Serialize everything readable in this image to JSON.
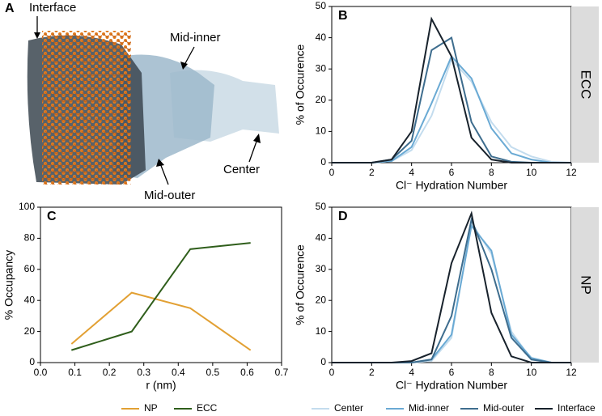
{
  "illustration": {
    "panel_label": "A",
    "annotations": {
      "interface": "Interface",
      "mid_inner": "Mid-inner",
      "center": "Center",
      "mid_outer": "Mid-outer"
    }
  },
  "chart_data": [
    {
      "type": "line",
      "panel_label": "B",
      "strip_label": "ECC",
      "x_label": "Cl⁻ Hydration Number",
      "y_label": "% of Occurence",
      "x": [
        0,
        1,
        2,
        3,
        4,
        5,
        6,
        7,
        8,
        9,
        10,
        11,
        12
      ],
      "series": [
        {
          "name": "Center",
          "color": "#c3dcee",
          "values": [
            0,
            0,
            0,
            0.5,
            4,
            15,
            33,
            26,
            13,
            5,
            2,
            0.3,
            0
          ]
        },
        {
          "name": "Mid-inner",
          "color": "#6aaad4",
          "values": [
            0,
            0,
            0,
            0.5,
            5,
            19,
            34,
            27,
            11,
            3,
            1,
            0,
            0
          ]
        },
        {
          "name": "Mid-outer",
          "color": "#3e6d8e",
          "values": [
            0,
            0,
            0,
            1,
            7,
            36,
            40,
            13,
            2,
            0.3,
            0,
            0,
            0
          ]
        },
        {
          "name": "Interface",
          "color": "#18222c",
          "values": [
            0,
            0,
            0,
            1,
            10,
            46,
            34,
            8,
            1,
            0,
            0,
            0,
            0
          ]
        }
      ],
      "xlim": [
        0,
        12
      ],
      "xticks": [
        0,
        2,
        4,
        6,
        8,
        10,
        12
      ],
      "ylim": [
        0,
        50
      ],
      "yticks": [
        0,
        10,
        20,
        30,
        40,
        50
      ],
      "legend": "bottom-right"
    },
    {
      "type": "line",
      "panel_label": "C",
      "x_label": "r (nm)",
      "y_label": "% Occupancy",
      "x": [
        0.09,
        0.265,
        0.435,
        0.61
      ],
      "series": [
        {
          "name": "NP",
          "color": "#e2a033",
          "values": [
            12,
            45,
            35,
            8
          ]
        },
        {
          "name": "ECC",
          "color": "#2f5e1b",
          "values": [
            8,
            20,
            73,
            77
          ]
        }
      ],
      "xlim": [
        0,
        0.7
      ],
      "xticks": [
        {
          "value": 0,
          "label": "0.0"
        },
        0.1,
        0.2,
        0.3,
        0.4,
        0.5,
        0.6,
        0.7
      ],
      "ylim": [
        0,
        100
      ],
      "yticks": [
        0,
        20,
        40,
        60,
        80,
        100
      ],
      "legend": "bottom-left"
    },
    {
      "type": "line",
      "panel_label": "D",
      "strip_label": "NP",
      "x_label": "Cl⁻ Hydration Number",
      "y_label": "% of Occurence",
      "x": [
        0,
        1,
        2,
        3,
        4,
        5,
        6,
        7,
        8,
        9,
        10,
        11,
        12
      ],
      "series": [
        {
          "name": "Center",
          "color": "#c3dcee",
          "values": [
            0,
            0,
            0,
            0,
            0,
            0.5,
            8,
            45,
            35,
            10,
            1,
            0,
            0
          ]
        },
        {
          "name": "Mid-inner",
          "color": "#6aaad4",
          "values": [
            0,
            0,
            0,
            0,
            0,
            1,
            9,
            44,
            36,
            9,
            1.5,
            0,
            0
          ]
        },
        {
          "name": "Mid-outer",
          "color": "#3e6d8e",
          "values": [
            0,
            0,
            0,
            0,
            0,
            1,
            15,
            46,
            30,
            8,
            1,
            0,
            0
          ]
        },
        {
          "name": "Interface",
          "color": "#18222c",
          "values": [
            0,
            0,
            0,
            0,
            0.5,
            3,
            32,
            48,
            16,
            2,
            0,
            0,
            0
          ]
        }
      ],
      "xlim": [
        0,
        12
      ],
      "xticks": [
        0,
        2,
        4,
        6,
        8,
        10,
        12
      ],
      "ylim": [
        0,
        50
      ],
      "yticks": [
        0,
        10,
        20,
        30,
        40,
        50
      ]
    }
  ]
}
